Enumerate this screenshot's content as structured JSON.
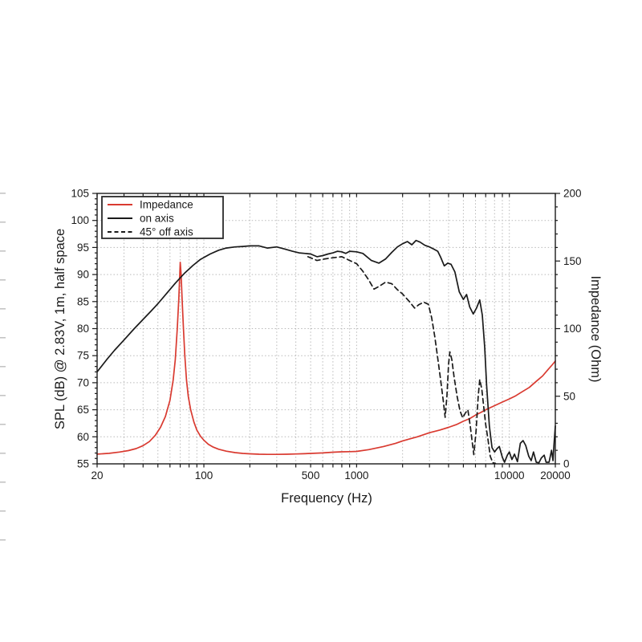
{
  "page": {
    "background": "#ffffff"
  },
  "chart_data": {
    "type": "line",
    "title": "",
    "xlabel": "Frequency (Hz)",
    "ylabel_left": "SPL (dB) @ 2.83V, 1m, half space",
    "ylabel_right": "Impedance (Ohm)",
    "x_scale": "log",
    "xlim": [
      20,
      20000
    ],
    "ylim_left": [
      55,
      105
    ],
    "ylim_right": [
      0,
      200
    ],
    "grid": {
      "style": "dotted",
      "color": "#b9b9b9"
    },
    "axis_color": "#1a1a1a",
    "x_tick_labels": [
      "20",
      "100",
      "500",
      "1000",
      "10000",
      "20000"
    ],
    "x_tick_values": [
      20,
      100,
      500,
      1000,
      10000,
      20000
    ],
    "y_ticks_left": [
      55,
      60,
      65,
      70,
      75,
      80,
      85,
      90,
      95,
      100,
      105
    ],
    "y_ticks_right": [
      0,
      50,
      100,
      150,
      200
    ],
    "legend": {
      "position": "top-left",
      "items": [
        {
          "label": "Impedance",
          "color": "#d93a30",
          "style": "solid"
        },
        {
          "label": "on axis",
          "color": "#1a1a1a",
          "style": "solid"
        },
        {
          "label": "45° off axis",
          "color": "#1a1a1a",
          "style": "dashed"
        }
      ]
    },
    "series": [
      {
        "name": "Impedance",
        "axis": "right",
        "unit": "Ohm",
        "color": "#d93a30",
        "style": "solid",
        "points": [
          [
            20,
            7.2
          ],
          [
            24,
            7.8
          ],
          [
            28,
            8.7
          ],
          [
            32,
            9.8
          ],
          [
            36,
            11.3
          ],
          [
            40,
            13.5
          ],
          [
            44,
            16.5
          ],
          [
            48,
            21
          ],
          [
            52,
            27
          ],
          [
            56,
            35
          ],
          [
            60,
            47
          ],
          [
            63,
            62
          ],
          [
            65,
            77
          ],
          [
            67,
            100
          ],
          [
            68.5,
            122
          ],
          [
            69.5,
            140
          ],
          [
            70,
            149
          ],
          [
            71,
            140
          ],
          [
            72,
            122
          ],
          [
            73.5,
            100
          ],
          [
            75,
            80
          ],
          [
            77,
            62
          ],
          [
            79,
            50
          ],
          [
            82,
            40
          ],
          [
            86,
            31
          ],
          [
            90,
            25
          ],
          [
            95,
            20.5
          ],
          [
            100,
            17.5
          ],
          [
            107,
            14.5
          ],
          [
            115,
            12.4
          ],
          [
            125,
            10.8
          ],
          [
            140,
            9.4
          ],
          [
            160,
            8.3
          ],
          [
            180,
            7.7
          ],
          [
            200,
            7.4
          ],
          [
            230,
            7.1
          ],
          [
            260,
            7.0
          ],
          [
            300,
            7.0
          ],
          [
            350,
            7.1
          ],
          [
            400,
            7.3
          ],
          [
            450,
            7.5
          ],
          [
            500,
            7.7
          ],
          [
            600,
            8.1
          ],
          [
            700,
            8.6
          ],
          [
            800,
            8.9
          ],
          [
            900,
            9.0
          ],
          [
            1000,
            9.2
          ],
          [
            1200,
            10.5
          ],
          [
            1500,
            12.8
          ],
          [
            1800,
            15.2
          ],
          [
            2000,
            17.0
          ],
          [
            2500,
            20.0
          ],
          [
            3000,
            23.0
          ],
          [
            3500,
            25.0
          ],
          [
            4000,
            27.0
          ],
          [
            4500,
            29.0
          ],
          [
            5000,
            31.5
          ],
          [
            5500,
            33.5
          ],
          [
            6000,
            36.0
          ],
          [
            6500,
            38.0
          ],
          [
            7000,
            40.0
          ],
          [
            8000,
            43.0
          ],
          [
            9000,
            45.7
          ],
          [
            10000,
            48.0
          ],
          [
            11000,
            50.3
          ],
          [
            12000,
            53.0
          ],
          [
            13500,
            56.5
          ],
          [
            15000,
            61.0
          ],
          [
            16500,
            65.0
          ],
          [
            18000,
            70.0
          ],
          [
            19000,
            73.0
          ],
          [
            20000,
            76.0
          ]
        ]
      },
      {
        "name": "on axis",
        "axis": "left",
        "unit": "dB",
        "color": "#1a1a1a",
        "style": "solid",
        "points": [
          [
            20,
            72
          ],
          [
            23,
            74.2
          ],
          [
            26,
            76
          ],
          [
            30,
            77.9
          ],
          [
            35,
            80
          ],
          [
            40,
            81.7
          ],
          [
            45,
            83.2
          ],
          [
            50,
            84.6
          ],
          [
            57,
            86.5
          ],
          [
            65,
            88.4
          ],
          [
            75,
            90.3
          ],
          [
            85,
            91.7
          ],
          [
            95,
            92.8
          ],
          [
            110,
            93.8
          ],
          [
            125,
            94.5
          ],
          [
            140,
            94.9
          ],
          [
            160,
            95.1
          ],
          [
            180,
            95.2
          ],
          [
            200,
            95.3
          ],
          [
            230,
            95.3
          ],
          [
            260,
            94.9
          ],
          [
            300,
            95.1
          ],
          [
            340,
            94.7
          ],
          [
            380,
            94.3
          ],
          [
            420,
            94.0
          ],
          [
            460,
            93.9
          ],
          [
            500,
            93.8
          ],
          [
            550,
            93.3
          ],
          [
            600,
            93.5
          ],
          [
            650,
            93.8
          ],
          [
            700,
            94.0
          ],
          [
            750,
            94.3
          ],
          [
            800,
            94.2
          ],
          [
            850,
            93.9
          ],
          [
            900,
            94.3
          ],
          [
            1000,
            94.2
          ],
          [
            1100,
            93.9
          ],
          [
            1250,
            92.6
          ],
          [
            1400,
            92.1
          ],
          [
            1550,
            92.9
          ],
          [
            1700,
            94.1
          ],
          [
            1850,
            95.1
          ],
          [
            2000,
            95.7
          ],
          [
            2150,
            96.1
          ],
          [
            2300,
            95.5
          ],
          [
            2450,
            96.3
          ],
          [
            2600,
            96.0
          ],
          [
            2800,
            95.4
          ],
          [
            3000,
            95.1
          ],
          [
            3200,
            94.7
          ],
          [
            3400,
            94.3
          ],
          [
            3550,
            93.2
          ],
          [
            3750,
            91.6
          ],
          [
            3950,
            92.1
          ],
          [
            4150,
            91.9
          ],
          [
            4400,
            90.5
          ],
          [
            4700,
            86.8
          ],
          [
            5000,
            85.4
          ],
          [
            5250,
            86.3
          ],
          [
            5500,
            84.0
          ],
          [
            5800,
            82.7
          ],
          [
            6100,
            83.8
          ],
          [
            6400,
            85.3
          ],
          [
            6650,
            82.5
          ],
          [
            6900,
            76.5
          ],
          [
            7100,
            69.5
          ],
          [
            7400,
            62.0
          ],
          [
            7700,
            58.0
          ],
          [
            8000,
            57.2
          ],
          [
            8300,
            57.8
          ],
          [
            8600,
            58.2
          ],
          [
            9000,
            56.2
          ],
          [
            9300,
            55.3
          ],
          [
            9700,
            56.6
          ],
          [
            10000,
            57.2
          ],
          [
            10400,
            55.8
          ],
          [
            10800,
            56.8
          ],
          [
            11300,
            55.4
          ],
          [
            11800,
            58.8
          ],
          [
            12300,
            59.3
          ],
          [
            12800,
            58.4
          ],
          [
            13400,
            56.4
          ],
          [
            13900,
            55.6
          ],
          [
            14400,
            57.2
          ],
          [
            15000,
            55.3
          ],
          [
            15600,
            55.2
          ],
          [
            16200,
            56.1
          ],
          [
            16900,
            56.6
          ],
          [
            17400,
            55.3
          ],
          [
            18200,
            55.3
          ],
          [
            18900,
            57.5
          ],
          [
            19300,
            55.6
          ],
          [
            19600,
            58.5
          ],
          [
            20000,
            62.0
          ]
        ]
      },
      {
        "name": "45° off axis",
        "axis": "left",
        "unit": "dB",
        "color": "#1a1a1a",
        "style": "dashed",
        "points": [
          [
            480,
            93.3
          ],
          [
            550,
            92.6
          ],
          [
            620,
            92.9
          ],
          [
            700,
            93.1
          ],
          [
            800,
            93.3
          ],
          [
            900,
            92.6
          ],
          [
            1000,
            92.0
          ],
          [
            1100,
            90.6
          ],
          [
            1200,
            89.0
          ],
          [
            1300,
            87.3
          ],
          [
            1400,
            87.8
          ],
          [
            1550,
            88.6
          ],
          [
            1700,
            88.3
          ],
          [
            1850,
            87.2
          ],
          [
            2000,
            86.4
          ],
          [
            2200,
            85.1
          ],
          [
            2400,
            83.8
          ],
          [
            2550,
            84.4
          ],
          [
            2750,
            84.9
          ],
          [
            2950,
            84.5
          ],
          [
            3100,
            82.0
          ],
          [
            3250,
            78.5
          ],
          [
            3400,
            74.5
          ],
          [
            3550,
            70.5
          ],
          [
            3700,
            66.5
          ],
          [
            3800,
            63.6
          ],
          [
            3900,
            67.5
          ],
          [
            4000,
            73.5
          ],
          [
            4080,
            75.7
          ],
          [
            4200,
            74.3
          ],
          [
            4350,
            71.0
          ],
          [
            4550,
            67.5
          ],
          [
            4750,
            64.8
          ],
          [
            4950,
            63.5
          ],
          [
            5150,
            64.4
          ],
          [
            5350,
            65.0
          ],
          [
            5550,
            62.0
          ],
          [
            5700,
            59.3
          ],
          [
            5850,
            56.7
          ],
          [
            6050,
            61.0
          ],
          [
            6250,
            67.5
          ],
          [
            6400,
            70.6
          ],
          [
            6600,
            68.8
          ],
          [
            6800,
            65.5
          ],
          [
            7000,
            62.3
          ],
          [
            7250,
            59.5
          ],
          [
            7500,
            56.4
          ],
          [
            7800,
            55.2
          ],
          [
            8100,
            55.1
          ]
        ]
      }
    ]
  }
}
